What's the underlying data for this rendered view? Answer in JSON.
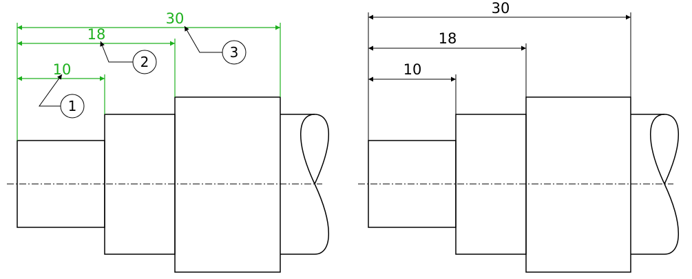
{
  "colors": {
    "outline": "#000000",
    "dimension_highlight": "#1db01d"
  },
  "left_view": {
    "dimensions": {
      "dim_10": "10",
      "dim_18": "18",
      "dim_30": "30"
    },
    "callouts": {
      "callout_1": "1",
      "callout_2": "2",
      "callout_3": "3"
    }
  },
  "right_view": {
    "dimensions": {
      "dim_10": "10",
      "dim_18": "18",
      "dim_30": "30"
    }
  }
}
